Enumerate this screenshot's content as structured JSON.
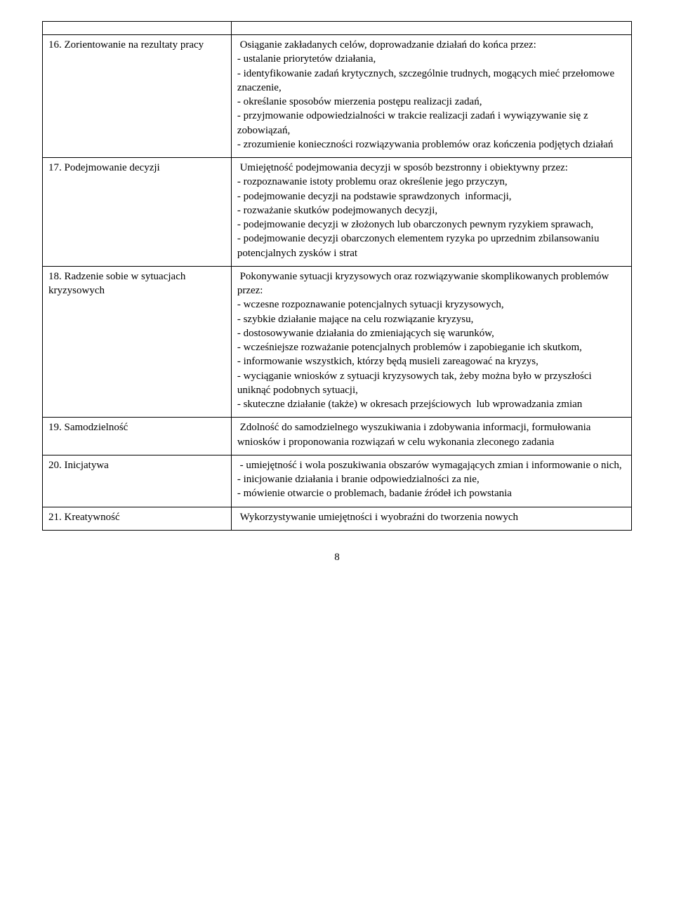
{
  "rows": [
    {
      "label": "16. Zorientowanie na rezultaty pracy",
      "desc": " Osiąganie zakładanych celów, doprowadzanie działań do końca przez:\n- ustalanie priorytetów działania,\n- identyfikowanie zadań krytycznych, szczególnie trudnych, mogących mieć przełomowe znaczenie,\n- określanie sposobów mierzenia postępu realizacji zadań,\n- przyjmowanie odpowiedzialności w trakcie realizacji zadań i wywiązywanie się z zobowiązań,\n- zrozumienie konieczności rozwiązywania problemów oraz kończenia podjętych działań"
    },
    {
      "label": "17. Podejmowanie decyzji",
      "desc": " Umiejętność podejmowania decyzji w sposób bezstronny i obiektywny przez:\n- rozpoznawanie istoty problemu oraz określenie jego przyczyn,\n- podejmowanie decyzji na podstawie sprawdzonych  informacji,\n- rozważanie skutków podejmowanych decyzji,\n- podejmowanie decyzji w złożonych lub obarczonych pewnym ryzykiem sprawach,\n- podejmowanie decyzji obarczonych elementem ryzyka po uprzednim zbilansowaniu potencjalnych zysków i strat"
    },
    {
      "label": "18. Radzenie sobie w sytuacjach kryzysowych",
      "desc": " Pokonywanie sytuacji kryzysowych oraz rozwiązywanie skomplikowanych problemów przez:\n- wczesne rozpoznawanie potencjalnych sytuacji kryzysowych,\n- szybkie działanie mające na celu rozwiązanie kryzysu,\n- dostosowywanie działania do zmieniających się warunków,\n- wcześniejsze rozważanie potencjalnych problemów i zapobieganie ich skutkom,\n- informowanie wszystkich, którzy będą musieli zareagować na kryzys,\n- wyciąganie wniosków z sytuacji kryzysowych tak, żeby można było w przyszłości uniknąć podobnych sytuacji,\n- skuteczne działanie (także) w okresach przejściowych  lub wprowadzania zmian"
    },
    {
      "label": "19. Samodzielność",
      "desc": " Zdolność do samodzielnego wyszukiwania i zdobywania informacji, formułowania wniosków i proponowania rozwiązań w celu wykonania zleconego zadania"
    },
    {
      "label": "20. Inicjatywa",
      "desc": " - umiejętność i wola poszukiwania obszarów wymagających zmian i informowanie o nich,\n- inicjowanie działania i branie odpowiedzialności za nie,\n- mówienie otwarcie o problemach, badanie źródeł ich powstania"
    },
    {
      "label": "21. Kreatywność",
      "desc": " Wykorzystywanie umiejętności i wyobraźni do tworzenia nowych"
    }
  ],
  "page_number": "8"
}
